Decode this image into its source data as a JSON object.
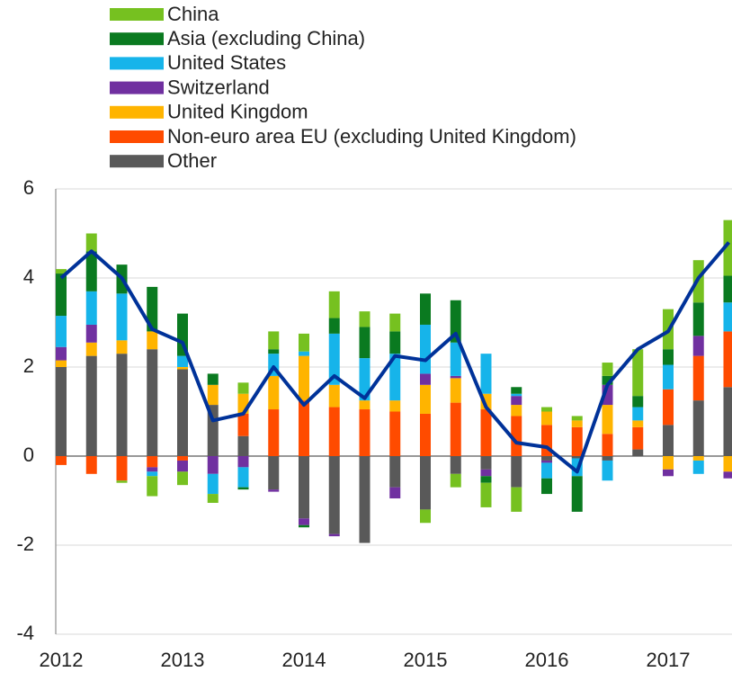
{
  "chart_data": {
    "type": "stacked-bar-line",
    "categories": [
      "2012",
      null,
      null,
      null,
      "2013",
      null,
      null,
      null,
      "2014",
      null,
      null,
      null,
      "2015",
      null,
      null,
      null,
      "2016",
      null,
      null,
      null,
      "2017",
      null,
      null
    ],
    "series": [
      {
        "name": "China",
        "color": "#76c120",
        "values": [
          0.1,
          0.4,
          -0.05,
          -0.45,
          -0.3,
          -0.2,
          0.25,
          0.4,
          0.4,
          0.6,
          0.35,
          0.4,
          -0.3,
          -0.3,
          -0.55,
          -0.55,
          0.1,
          0.1,
          0.3,
          1.05,
          0.9,
          0.95,
          1.25
        ]
      },
      {
        "name": "Asia (excluding China)",
        "color": "#0a7a20",
        "values": [
          0.95,
          0.9,
          0.65,
          1.0,
          0.95,
          0.25,
          -0.05,
          0.1,
          -0.05,
          0.35,
          0.7,
          0.5,
          0.7,
          0.95,
          -0.15,
          0.15,
          -0.35,
          -0.8,
          0.2,
          0.25,
          0.35,
          0.75,
          0.6
        ]
      },
      {
        "name": "United States",
        "color": "#16b4ea",
        "values": [
          0.7,
          0.75,
          1.05,
          -0.1,
          0.25,
          -0.45,
          -0.45,
          0.5,
          0.1,
          1.15,
          0.95,
          1.05,
          1.1,
          0.75,
          0.9,
          0.05,
          -0.35,
          -0.4,
          -0.45,
          0.3,
          0.55,
          -0.3,
          0.65
        ]
      },
      {
        "name": "Switzerland",
        "color": "#7030a0",
        "values": [
          0.3,
          0.4,
          0,
          -0.1,
          -0.25,
          -0.4,
          -0.25,
          -0.05,
          -0.15,
          -0.05,
          0,
          -0.25,
          0.25,
          0.05,
          -0.15,
          0.2,
          -0.05,
          0,
          0.45,
          0,
          -0.15,
          0.45,
          -0.15
        ]
      },
      {
        "name": "United Kingdom",
        "color": "#ffb400",
        "values": [
          0.15,
          0.3,
          0.3,
          0.4,
          0.05,
          0.45,
          0.45,
          0.75,
          1.0,
          0.5,
          0.2,
          0.25,
          0.65,
          0.55,
          0.35,
          0.25,
          0.3,
          0.15,
          0.65,
          0.15,
          -0.3,
          -0.1,
          -0.35
        ]
      },
      {
        "name": "Non-euro area EU (excluding United Kingdom)",
        "color": "#ff4b00",
        "values": [
          -0.2,
          -0.4,
          -0.55,
          -0.25,
          -0.1,
          0,
          0.5,
          1.05,
          1.25,
          1.1,
          1.05,
          1.0,
          0.95,
          1.2,
          1.05,
          0.9,
          0.7,
          0.65,
          0.5,
          0.5,
          0.8,
          1.0,
          1.25
        ]
      },
      {
        "name": "Other",
        "color": "#595959",
        "values": [
          2.0,
          2.25,
          2.3,
          2.4,
          1.95,
          1.15,
          0.45,
          -0.75,
          -1.4,
          -1.75,
          -1.95,
          -0.7,
          -1.2,
          -0.4,
          -0.3,
          -0.7,
          -0.1,
          -0.05,
          -0.1,
          0.15,
          0.7,
          1.25,
          1.55
        ]
      }
    ],
    "line": {
      "color": "#003299",
      "values": [
        4.0,
        4.6,
        4.0,
        2.85,
        2.55,
        0.8,
        0.95,
        2.0,
        1.15,
        1.8,
        1.3,
        2.25,
        2.15,
        2.75,
        1.1,
        0.3,
        0.2,
        -0.35,
        1.6,
        2.4,
        2.8,
        4.0,
        4.8
      ]
    },
    "ylim": [
      -4,
      6
    ],
    "yticks": [
      -4,
      -2,
      0,
      2,
      4,
      6
    ],
    "grid": true,
    "legend": "top"
  }
}
